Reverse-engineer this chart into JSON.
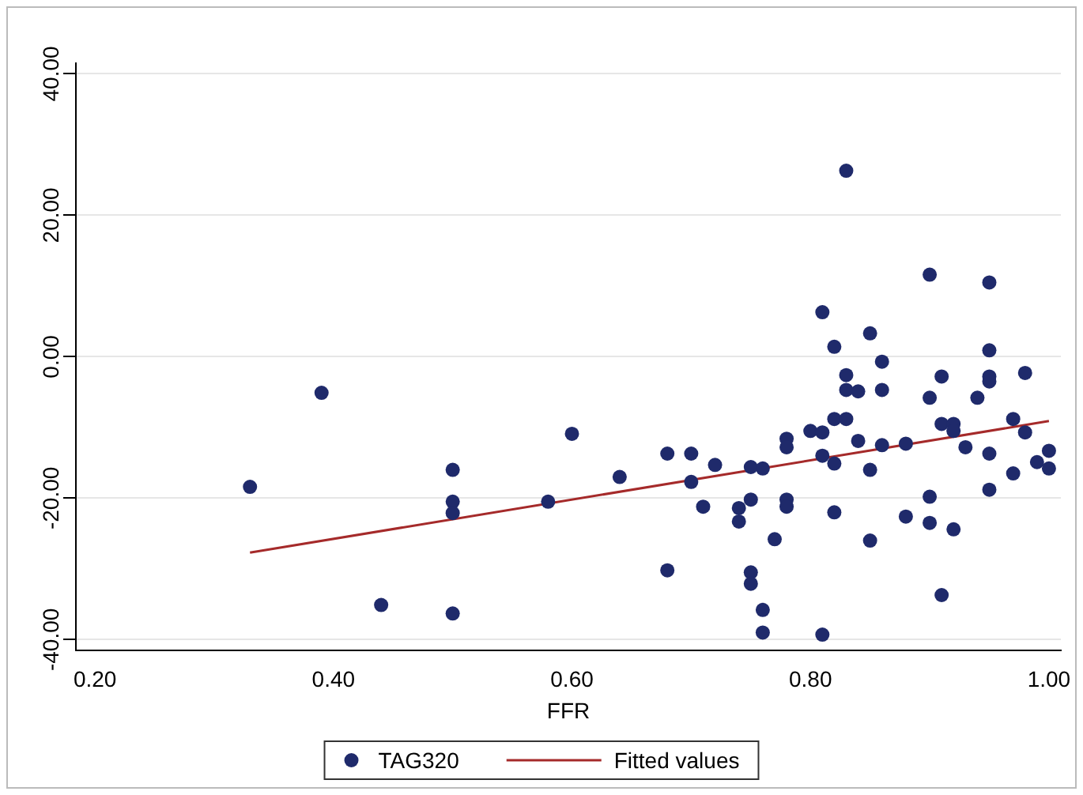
{
  "chart_data": {
    "type": "scatter",
    "xlabel": "FFR",
    "xlim": [
      0.184,
      1.01
    ],
    "ylim": [
      -41.5,
      41.5
    ],
    "xticks": [
      {
        "value": 0.2,
        "label": "0.20"
      },
      {
        "value": 0.4,
        "label": "0.40"
      },
      {
        "value": 0.6,
        "label": "0.60"
      },
      {
        "value": 0.8,
        "label": "0.80"
      },
      {
        "value": 1.0,
        "label": "1.00"
      }
    ],
    "yticks": [
      {
        "value": -40,
        "label": "-40.00"
      },
      {
        "value": -20,
        "label": "-20.00"
      },
      {
        "value": 0,
        "label": "0.00"
      },
      {
        "value": 20,
        "label": "20.00"
      },
      {
        "value": 40,
        "label": "40.00"
      }
    ],
    "grid": "y",
    "legend": "bottom",
    "marker": "circle",
    "series": [
      {
        "name": "TAG320",
        "color": "#1f2a6b",
        "x": [
          0.33,
          0.39,
          0.44,
          0.5,
          0.5,
          0.5,
          0.5,
          0.58,
          0.6,
          0.64,
          0.68,
          0.68,
          0.7,
          0.7,
          0.71,
          0.72,
          0.74,
          0.74,
          0.75,
          0.75,
          0.75,
          0.75,
          0.76,
          0.76,
          0.76,
          0.77,
          0.78,
          0.78,
          0.78,
          0.78,
          0.8,
          0.81,
          0.81,
          0.81,
          0.81,
          0.82,
          0.82,
          0.82,
          0.82,
          0.83,
          0.83,
          0.83,
          0.83,
          0.84,
          0.84,
          0.85,
          0.85,
          0.85,
          0.86,
          0.86,
          0.86,
          0.88,
          0.88,
          0.9,
          0.9,
          0.9,
          0.9,
          0.91,
          0.91,
          0.91,
          0.92,
          0.92,
          0.92,
          0.93,
          0.94,
          0.95,
          0.95,
          0.95,
          0.95,
          0.95,
          0.95,
          0.97,
          0.97,
          0.98,
          0.98,
          0.99,
          1.0,
          1.0
        ],
        "values": [
          -18.4,
          -5.1,
          -35.1,
          -16,
          -20.5,
          -22.1,
          -36.3,
          -20.5,
          -10.9,
          -17,
          -13.7,
          -30.2,
          -13.7,
          -17.7,
          -21.2,
          -15.3,
          -21.4,
          -23.3,
          -20.2,
          -15.6,
          -30.5,
          -32.1,
          -15.8,
          -35.8,
          -39,
          -25.8,
          -11.6,
          -12.8,
          -20.2,
          -21.2,
          -10.5,
          -10.7,
          6.3,
          -14,
          -39.3,
          1.4,
          -8.8,
          -15.1,
          -22,
          26.3,
          -2.6,
          -4.7,
          -8.8,
          -4.9,
          -11.9,
          3.3,
          -16,
          -26,
          -0.7,
          -4.7,
          -12.5,
          -12.3,
          -22.6,
          11.6,
          -5.8,
          -19.8,
          -23.5,
          -2.8,
          -9.5,
          -33.7,
          -9.5,
          -10.5,
          -24.4,
          -12.8,
          -5.8,
          10.5,
          0.9,
          -2.8,
          -3.5,
          -13.7,
          -18.8,
          -8.8,
          -16.5,
          -2.3,
          -10.7,
          -14.9,
          -13.3,
          -15.8
        ]
      },
      {
        "name": "Fitted values",
        "type": "line",
        "color": "#a52a2a",
        "marker": "none",
        "x": [
          0.33,
          1.0
        ],
        "values": [
          -27.7,
          -9.1
        ]
      }
    ]
  }
}
